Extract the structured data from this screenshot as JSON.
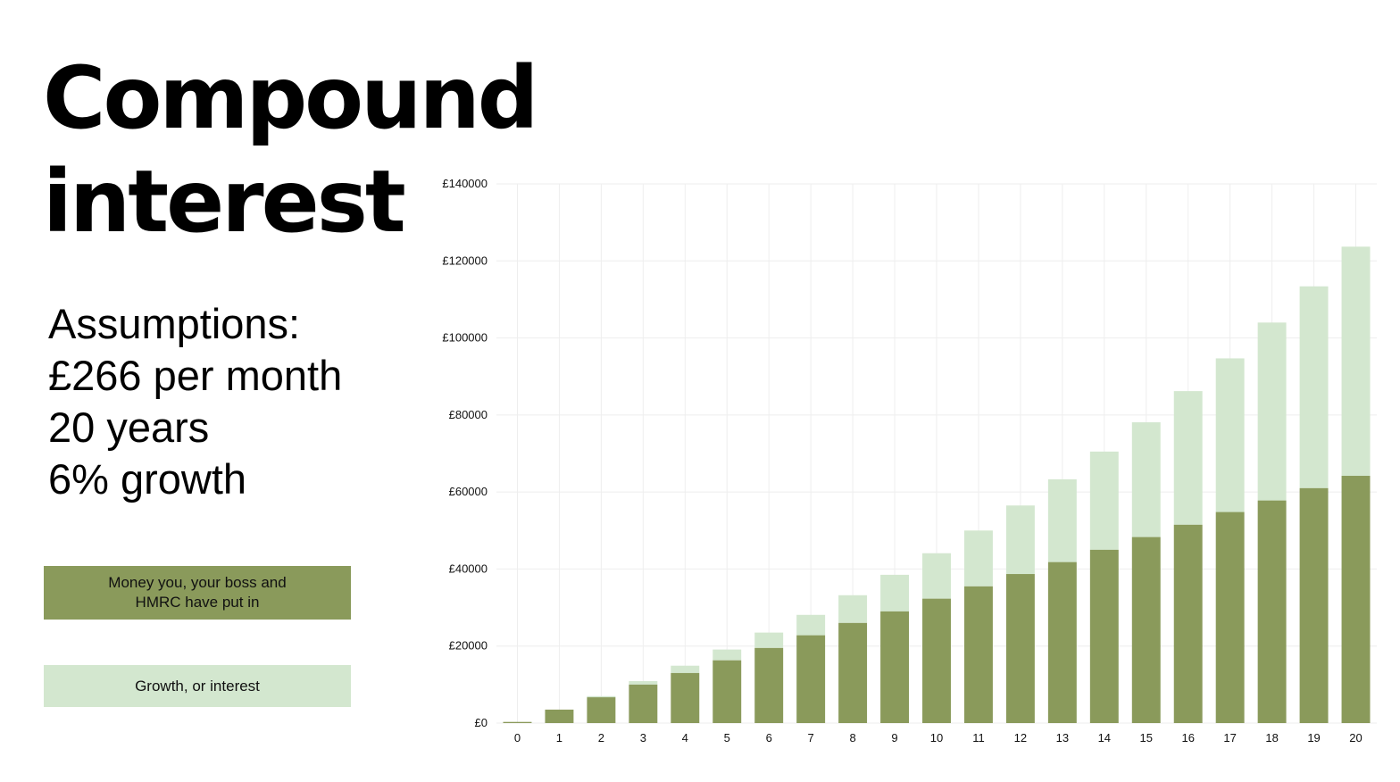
{
  "heading": {
    "title": "Compound interest"
  },
  "assumptions": {
    "heading": "Assumptions:",
    "lines": [
      "£266 per month",
      "20 years",
      "6% growth"
    ]
  },
  "legend": {
    "contributions_label": "Money you, your boss and HMRC have put in",
    "growth_label": "Growth, or interest"
  },
  "colors": {
    "contributions": "#8a9a5b",
    "growth": "#d3e7cf",
    "grid": "#eeeeee",
    "text": "#111111"
  },
  "chart_data": {
    "type": "bar",
    "stacked": true,
    "categories": [
      "0",
      "1",
      "2",
      "3",
      "4",
      "5",
      "6",
      "7",
      "8",
      "9",
      "10",
      "11",
      "12",
      "13",
      "14",
      "15",
      "16",
      "17",
      "18",
      "19",
      "20"
    ],
    "series": [
      {
        "name": "Money you, your boss and HMRC have put in",
        "color": "#8a9a5b",
        "values": [
          300,
          3500,
          6700,
          10000,
          13000,
          16300,
          19500,
          22800,
          26000,
          29000,
          32300,
          35500,
          38700,
          41800,
          45000,
          48300,
          51500,
          54800,
          57800,
          61000,
          64200
        ]
      },
      {
        "name": "Growth, or interest",
        "color": "#d3e7cf",
        "values": [
          0,
          0,
          300,
          900,
          1900,
          2800,
          4000,
          5300,
          7200,
          9500,
          11800,
          14500,
          17800,
          21500,
          25500,
          29800,
          34700,
          39900,
          46200,
          52400,
          59500
        ]
      }
    ],
    "ylim": [
      0,
      140000
    ],
    "yticks": [
      0,
      20000,
      40000,
      60000,
      80000,
      100000,
      120000,
      140000
    ],
    "ytick_labels": [
      "£0",
      "£20000",
      "£40000",
      "£60000",
      "£80000",
      "£100000",
      "£120000",
      "£140000"
    ],
    "grid": true
  }
}
